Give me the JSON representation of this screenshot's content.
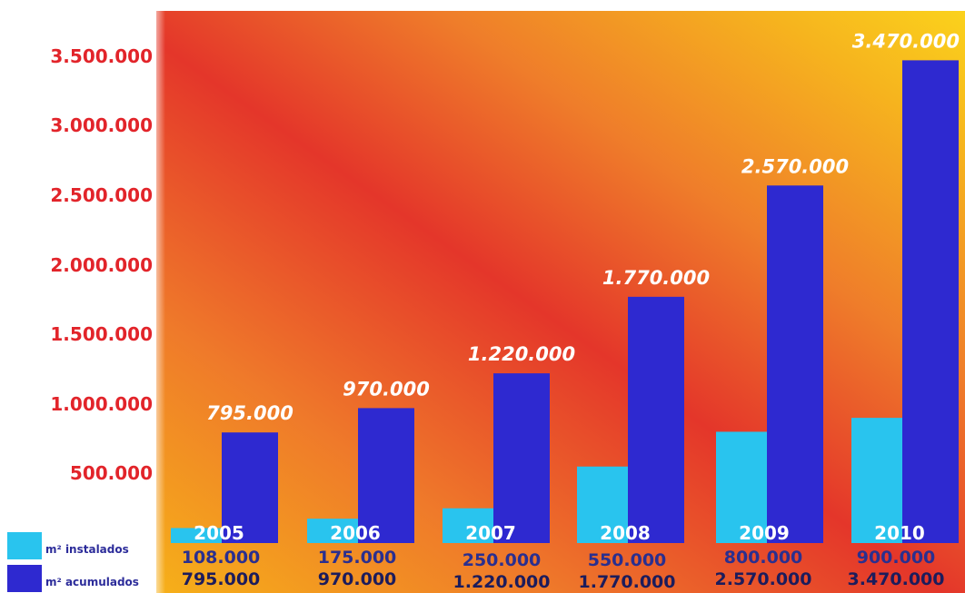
{
  "chart_data": {
    "type": "bar",
    "categories": [
      "2005",
      "2006",
      "2007",
      "2008",
      "2009",
      "2010"
    ],
    "series": [
      {
        "name": "m² instalados",
        "color": "#29c4ee",
        "values": [
          108000,
          175000,
          250000,
          550000,
          800000,
          900000
        ],
        "value_labels": [
          "108.000",
          "175.000",
          "250.000",
          "550.000",
          "800.000",
          "900.000"
        ]
      },
      {
        "name": "m² acumulados",
        "color": "#2e29d0",
        "values": [
          795000,
          970000,
          1220000,
          1770000,
          2570000,
          3470000
        ],
        "value_labels": [
          "795.000",
          "970.000",
          "1.220.000",
          "1.770.000",
          "2.570.000",
          "3.470.000"
        ]
      }
    ],
    "y_ticks": [
      {
        "value": 500000,
        "label": "500.000"
      },
      {
        "value": 1000000,
        "label": "1.000.000"
      },
      {
        "value": 1500000,
        "label": "1.500.000"
      },
      {
        "value": 2000000,
        "label": "2.000.000"
      },
      {
        "value": 2500000,
        "label": "2.500.000"
      },
      {
        "value": 3000000,
        "label": "3.000.000"
      },
      {
        "value": 3500000,
        "label": "3.500.000"
      }
    ],
    "ylim": [
      0,
      3500000
    ],
    "grid": false,
    "legend_position": "bottom-left"
  },
  "legend": {
    "items": [
      {
        "label": "m² instalados",
        "color": "#29c4ee"
      },
      {
        "label": "m² acumulados",
        "color": "#2e29d0"
      }
    ]
  }
}
